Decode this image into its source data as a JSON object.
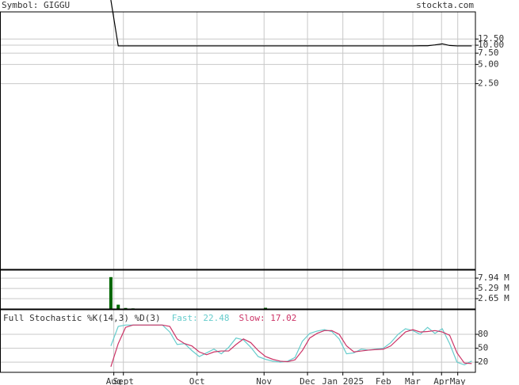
{
  "header": {
    "symbol": "Symbol: GIGGU",
    "site": "stockta.com"
  },
  "chart_data": [
    {
      "type": "line",
      "scale": "log",
      "color": "#000000",
      "grid": true,
      "ylim": [
        0.0031,
        51
      ],
      "yticks": [
        {
          "value": 12.5,
          "label": "12.50"
        },
        {
          "value": 10,
          "label": "10.00"
        },
        {
          "value": 7.5,
          "label": "7.50"
        },
        {
          "value": 5,
          "label": "5.00"
        },
        {
          "value": 2.5,
          "label": "2.50"
        }
      ],
      "values": [
        51,
        9.75,
        9.75,
        9.75,
        9.75,
        9.75,
        9.75,
        9.75,
        9.75,
        9.75,
        9.75,
        9.75,
        9.75,
        9.75,
        9.75,
        9.75,
        9.75,
        9.75,
        9.75,
        9.75,
        9.75,
        9.75,
        9.75,
        9.75,
        9.75,
        9.75,
        9.75,
        9.75,
        9.75,
        9.75,
        9.75,
        9.75,
        9.75,
        9.75,
        9.75,
        9.75,
        9.75,
        9.75,
        9.75,
        9.75,
        9.75,
        9.75,
        9.8,
        9.8,
        10.1,
        10.5,
        9.9,
        9.75,
        9.75,
        9.75
      ]
    },
    {
      "type": "bar",
      "color": "#006600",
      "grid": true,
      "ylim": [
        0,
        10000000
      ],
      "yticks": [
        {
          "value": 7940000,
          "label": "7.94 M"
        },
        {
          "value": 5290000,
          "label": "5.29 M"
        },
        {
          "value": 2650000,
          "label": "2.65 M"
        }
      ],
      "values": [
        8200000,
        1100000,
        250000,
        150000,
        100000,
        60000,
        40000,
        30000,
        30000,
        30000,
        30000,
        30000,
        30000,
        30000,
        30000,
        30000,
        30000,
        30000,
        30000,
        30000,
        30000,
        300000,
        30000,
        30000,
        30000,
        30000,
        30000,
        30000,
        30000,
        30000,
        30000,
        30000,
        30000,
        30000,
        30000,
        30000,
        30000,
        30000,
        30000,
        30000,
        30000,
        30000,
        30000,
        30000,
        30000,
        30000,
        30000,
        30000,
        30000,
        30000
      ]
    },
    {
      "type": "stochastic",
      "title": "Full Stochastic %K(14,3) %D(3)",
      "grid": true,
      "ylim": [
        -2,
        133
      ],
      "yticks": [
        80,
        50,
        20
      ],
      "xlim": [
        -15,
        49.5
      ],
      "xticks": [
        {
          "value": 0.4,
          "label": "Aug"
        },
        {
          "value": 1.7,
          "label": "Sept"
        },
        {
          "value": 11.7,
          "label": "Oct"
        },
        {
          "value": 20.8,
          "label": "Nov"
        },
        {
          "value": 26.7,
          "label": "Dec"
        },
        {
          "value": 31.5,
          "label": "Jan 2025"
        },
        {
          "value": 37.0,
          "label": "Feb"
        },
        {
          "value": 41.0,
          "label": "Mar"
        },
        {
          "value": 44.9,
          "label": "Apr"
        },
        {
          "value": 47.1,
          "label": "May"
        }
      ],
      "series": [
        {
          "name": "Fast: 22.48",
          "color": "#66cccc",
          "values": [
            55,
            97,
            100,
            100,
            100,
            100,
            100,
            100,
            85,
            58,
            60,
            45,
            32,
            40,
            48,
            38,
            52,
            72,
            68,
            52,
            32,
            26,
            22,
            20,
            22,
            30,
            65,
            82,
            87,
            90,
            86,
            70,
            38,
            40,
            48,
            46,
            48,
            50,
            62,
            80,
            92,
            88,
            80,
            95,
            82,
            92,
            60,
            20,
            14,
            22.48
          ]
        },
        {
          "name": "Slow: 17.02",
          "color": "#cc3366",
          "values": [
            10,
            60,
            95,
            100,
            100,
            100,
            100,
            100,
            97,
            70,
            60,
            55,
            42,
            36,
            42,
            44,
            44,
            58,
            70,
            62,
            45,
            32,
            26,
            22,
            21,
            25,
            45,
            72,
            82,
            88,
            88,
            80,
            55,
            42,
            44,
            46,
            47,
            48,
            55,
            70,
            85,
            90,
            85,
            86,
            88,
            85,
            78,
            40,
            18,
            17.02
          ]
        }
      ]
    }
  ]
}
